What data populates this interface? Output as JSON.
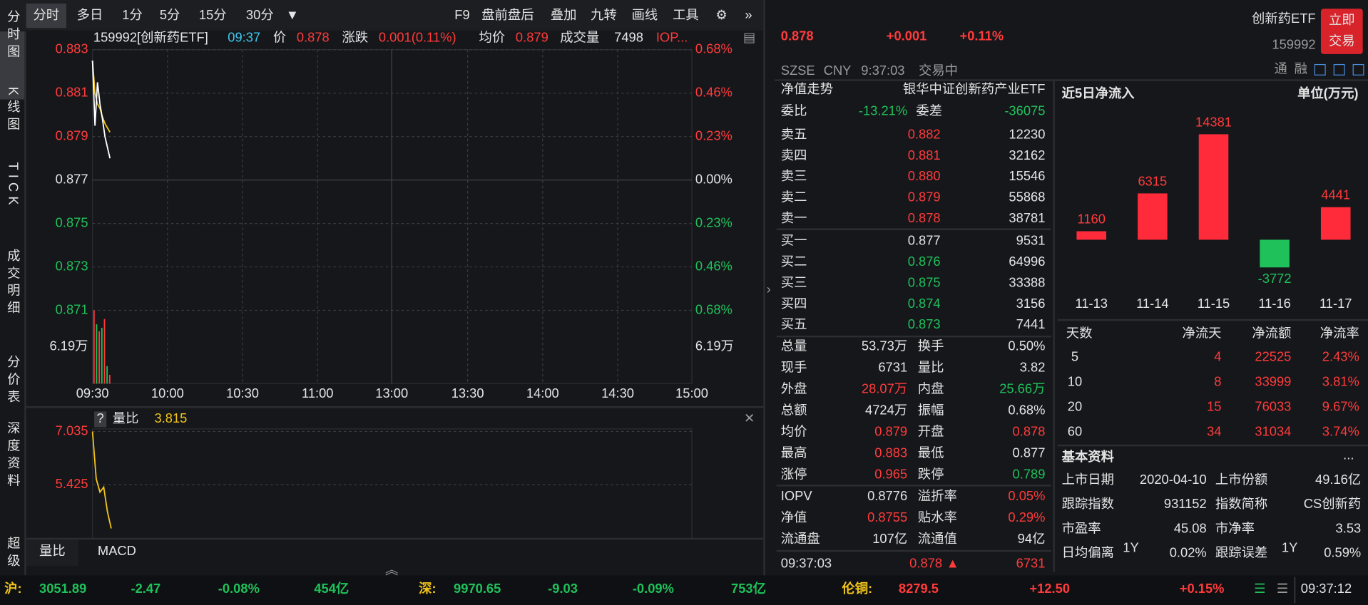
{
  "toolbar": {
    "tabs": [
      "分时",
      "多日",
      "1分",
      "5分",
      "15分",
      "30分"
    ],
    "tools": [
      "F9",
      "盘前盘后",
      "叠加",
      "九转",
      "画线",
      "工具"
    ]
  },
  "sidebar": [
    "分时图",
    "K线图",
    "TICK",
    "成交明细",
    "分价表",
    "深度资料",
    "超级"
  ],
  "quote_bar": [
    "159992[创新药ETF]",
    "09:37",
    "价",
    "0.878",
    "涨跌",
    "0.001(0.11%)",
    "均价",
    "0.879",
    "成交量",
    "7498",
    "IOP..."
  ],
  "price_chart": {
    "yticks": [
      0.883,
      0.881,
      0.879,
      0.877,
      0.875,
      0.873,
      0.871
    ],
    "ylim": [
      0.871,
      0.883
    ],
    "right_ticks": [
      "0.68%",
      "0.46%",
      "0.23%",
      "0.00%",
      "0.23%",
      "0.46%",
      "0.68%"
    ],
    "volume_label": "6.19万",
    "xticks": [
      "09:30",
      "10:00",
      "10:30",
      "11:00",
      "13:00",
      "13:30",
      "14:00",
      "14:30",
      "15:00"
    ],
    "price": [
      0.8825,
      0.8795,
      0.8815,
      0.8805,
      0.8798,
      0.879,
      0.8785,
      0.878
    ],
    "average": [
      0.8825,
      0.881,
      0.8805,
      0.8803,
      0.8799,
      0.8796,
      0.8794,
      0.8792
    ]
  },
  "lower_panel": {
    "help": "?",
    "label": "量比",
    "value": "3.815",
    "yticks": [
      7.035,
      5.425
    ],
    "values": [
      7.035,
      5.6,
      5.2,
      5.35,
      4.6,
      4.1
    ]
  },
  "bottom_tabs": [
    "量比",
    "MACD"
  ],
  "header": {
    "price": "0.878",
    "change": "+0.001",
    "pct": "+0.11%",
    "name": "创新药ETF",
    "code": "159992",
    "button": [
      "立即",
      "交易"
    ],
    "info": [
      "SZSE",
      "CNY",
      "9:37:03",
      "交易中"
    ],
    "icons": [
      "通",
      "融"
    ]
  },
  "fund_row": [
    "净值走势",
    "银华中证创新药产业ETF"
  ],
  "ratio_row": [
    "委比",
    "-13.21%",
    "委差",
    "-36075"
  ],
  "asks": [
    [
      "卖五",
      "0.882",
      "12230"
    ],
    [
      "卖四",
      "0.881",
      "32162"
    ],
    [
      "卖三",
      "0.880",
      "15546"
    ],
    [
      "卖二",
      "0.879",
      "55868"
    ],
    [
      "卖一",
      "0.878",
      "38781"
    ]
  ],
  "bids": [
    [
      "买一",
      "0.877",
      "9531"
    ],
    [
      "买二",
      "0.876",
      "64996"
    ],
    [
      "买三",
      "0.875",
      "33388"
    ],
    [
      "买四",
      "0.874",
      "3156"
    ],
    [
      "买五",
      "0.873",
      "7441"
    ]
  ],
  "stats": [
    [
      "总量",
      "53.73万",
      "换手",
      "0.50%"
    ],
    [
      "现手",
      "6731",
      "量比",
      "3.82"
    ],
    [
      "外盘",
      "28.07万",
      "内盘",
      "25.66万"
    ],
    [
      "总额",
      "4724万",
      "振幅",
      "0.68%"
    ],
    [
      "均价",
      "0.879",
      "开盘",
      "0.878"
    ],
    [
      "最高",
      "0.883",
      "最低",
      "0.877"
    ],
    [
      "涨停",
      "0.965",
      "跌停",
      "0.789"
    ],
    [
      "IOPV",
      "0.8776",
      "溢折率",
      "0.05%"
    ],
    [
      "净值",
      "0.8755",
      "贴水率",
      "0.29%"
    ],
    [
      "流通盘",
      "107亿",
      "流通值",
      "94亿"
    ]
  ],
  "last_trade": [
    "09:37:03",
    "0.878",
    "6731"
  ],
  "flow": {
    "title": "近5日净流入",
    "unit": "单位(万元)",
    "categories": [
      "11-13",
      "11-14",
      "11-15",
      "11-16",
      "11-17"
    ],
    "values": [
      1160,
      6315,
      14381,
      -3772,
      4441
    ]
  },
  "flow_table": {
    "header": [
      "天数",
      "净流天",
      "净流额",
      "净流率"
    ],
    "rows": [
      [
        "5",
        "4",
        "22525",
        "2.43%"
      ],
      [
        "10",
        "8",
        "33999",
        "3.81%"
      ],
      [
        "20",
        "15",
        "76033",
        "9.67%"
      ],
      [
        "60",
        "34",
        "31034",
        "3.74%"
      ]
    ]
  },
  "basic": {
    "title": "基本资料",
    "more": "...",
    "rows": [
      [
        "上市日期",
        "2020-04-10",
        "上市份额",
        "49.16亿"
      ],
      [
        "跟踪指数",
        "931152",
        "指数简称",
        "CS创新药"
      ],
      [
        "市盈率",
        "45.08",
        "市净率",
        "3.53"
      ],
      [
        "日均偏离",
        "0.02%",
        "跟踪误差",
        "0.59%"
      ]
    ],
    "sup": "1Y"
  },
  "footer": [
    [
      "沪:",
      "3051.89",
      "-2.47",
      "-0.08%",
      "454亿"
    ],
    [
      "深:",
      "9970.65",
      "-9.03",
      "-0.09%",
      "753亿"
    ],
    [
      "伦铜:",
      "8279.5",
      "+12.50",
      "+0.15%"
    ]
  ],
  "clock": "09:37:12"
}
